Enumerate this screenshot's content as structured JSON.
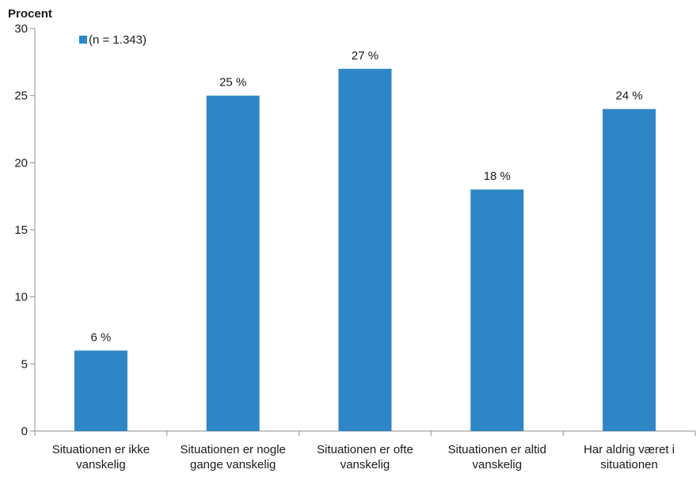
{
  "chart_data": {
    "type": "bar",
    "title": "",
    "ylabel": "Procent",
    "xlabel": "",
    "ylim": [
      0,
      30
    ],
    "yticks": [
      0,
      5,
      10,
      15,
      20,
      25,
      30
    ],
    "grid": false,
    "legend_position": "top-left",
    "categories": [
      [
        "Situationen er ikke",
        "vanskelig"
      ],
      [
        "Situationen er nogle",
        "gange vanskelig"
      ],
      [
        "Situationen er ofte",
        "vanskelig"
      ],
      [
        "Situationen er altid",
        "vanskelig"
      ],
      [
        "Har aldrig været i",
        "situationen"
      ]
    ],
    "series": [
      {
        "name": "(n = 1.343)",
        "color": "#2e86c6",
        "values": [
          6,
          25,
          27,
          18,
          24
        ],
        "labels": [
          "6 %",
          "25 %",
          "27 %",
          "18 %",
          "24 %"
        ]
      }
    ]
  }
}
